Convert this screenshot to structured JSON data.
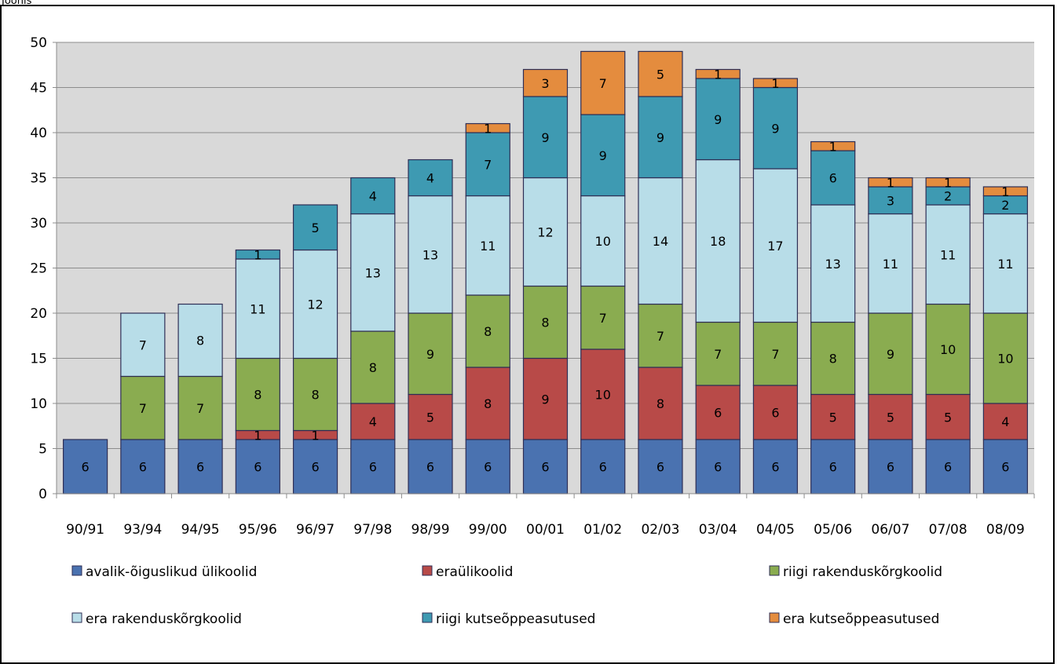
{
  "chart_data": {
    "type": "bar",
    "stacked": true,
    "top_text": "Joonis",
    "categories": [
      "90/91",
      "93/94",
      "94/95",
      "95/96",
      "96/97",
      "97/98",
      "98/99",
      "99/00",
      "00/01",
      "01/02",
      "02/03",
      "03/04",
      "04/05",
      "05/06",
      "06/07",
      "07/08",
      "08/09"
    ],
    "ylim": [
      0,
      50
    ],
    "yticks": [
      0,
      5,
      10,
      15,
      20,
      25,
      30,
      35,
      40,
      45,
      50
    ],
    "grid": true,
    "legend_position": "bottom",
    "series": [
      {
        "name": "avalik-õiguslikud  ülikoolid",
        "color": "#4a72b0",
        "values": [
          6,
          6,
          6,
          6,
          6,
          6,
          6,
          6,
          6,
          6,
          6,
          6,
          6,
          6,
          6,
          6,
          6
        ]
      },
      {
        "name": "eraülikoolid",
        "color": "#b84a48",
        "values": [
          0,
          0,
          0,
          1,
          1,
          4,
          5,
          8,
          9,
          10,
          8,
          6,
          6,
          5,
          5,
          5,
          4
        ]
      },
      {
        "name": "riigi rakenduskõrgkoolid",
        "color": "#8aac50",
        "values": [
          0,
          7,
          7,
          8,
          8,
          8,
          9,
          8,
          8,
          7,
          7,
          7,
          7,
          8,
          9,
          10,
          10
        ]
      },
      {
        "name": "era rakenduskõrgkoolid",
        "color": "#b8dde8",
        "values": [
          0,
          7,
          8,
          11,
          12,
          13,
          13,
          11,
          12,
          10,
          14,
          18,
          17,
          13,
          11,
          11,
          11
        ]
      },
      {
        "name": "riigi kutseõppeasutused",
        "color": "#3e9ab2",
        "values": [
          0,
          0,
          0,
          1,
          5,
          4,
          4,
          7,
          9,
          9,
          9,
          9,
          9,
          6,
          3,
          2,
          2
        ]
      },
      {
        "name": "era kutseõppeasutused",
        "color": "#e48c3e",
        "values": [
          0,
          0,
          0,
          0,
          0,
          0,
          0,
          1,
          3,
          7,
          5,
          1,
          1,
          1,
          1,
          1,
          1
        ]
      }
    ]
  }
}
